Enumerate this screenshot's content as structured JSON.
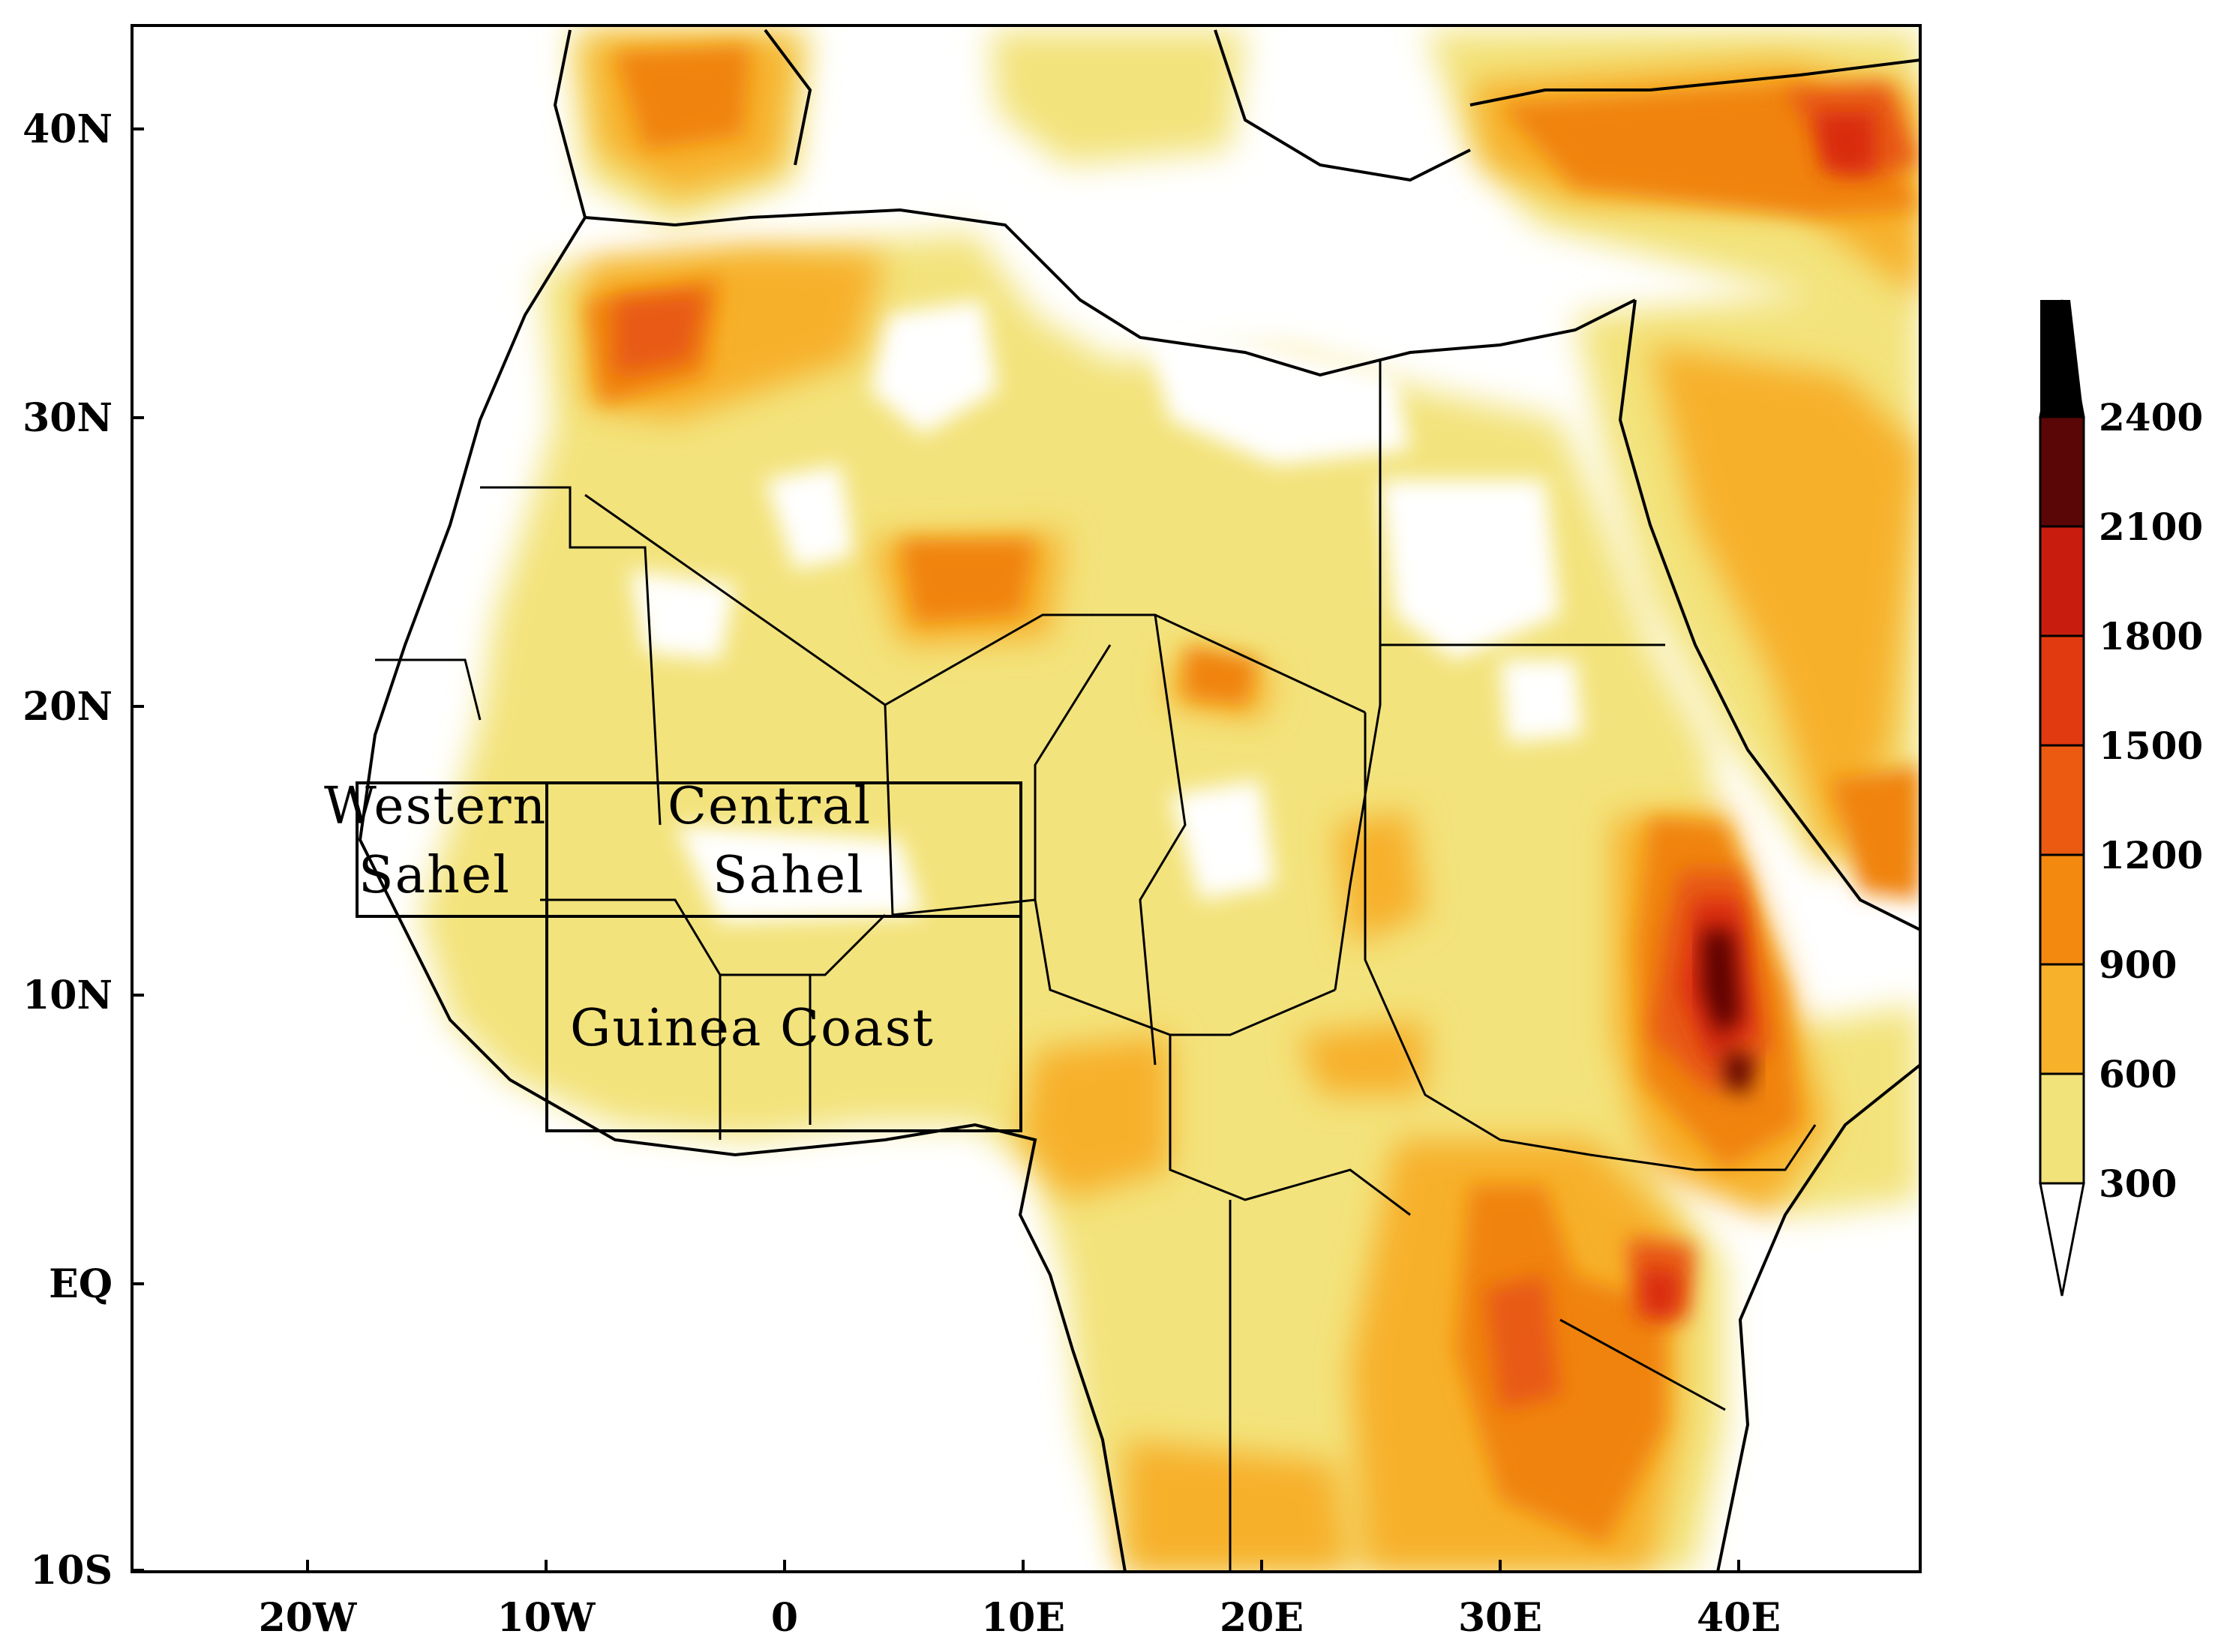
{
  "map": {
    "longitude_ticks": [
      "20W",
      "10W",
      "0",
      "10E",
      "20E",
      "30E",
      "40E"
    ],
    "latitude_ticks": [
      "40N",
      "30N",
      "20N",
      "10N",
      "EQ",
      "10S"
    ],
    "regions": [
      {
        "name_line1": "Western",
        "name_line2": "Sahel"
      },
      {
        "name_line1": "Central",
        "name_line2": "Sahel"
      },
      {
        "name_line1": "Guinea Coast",
        "name_line2": ""
      }
    ]
  },
  "colorbar": {
    "levels": [
      "300",
      "600",
      "900",
      "1200",
      "1500",
      "1800",
      "2100",
      "2400"
    ],
    "colors": [
      "#ffffff",
      "#f1e37a",
      "#f7b12a",
      "#f4890f",
      "#ec5a12",
      "#e23a10",
      "#c81d0e",
      "#5a0606",
      "#000000"
    ]
  }
}
